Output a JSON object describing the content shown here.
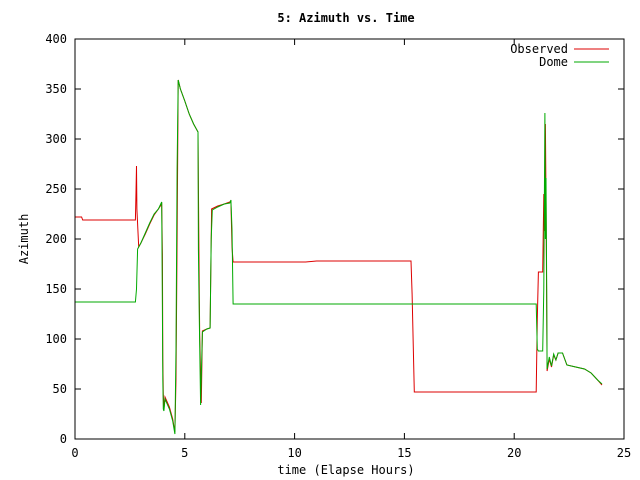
{
  "chart_data": {
    "type": "line",
    "title": "5: Azimuth vs. Time",
    "xlabel": "time (Elapse Hours)",
    "ylabel": "Azimuth",
    "xlim": [
      0,
      25
    ],
    "ylim": [
      0,
      400
    ],
    "xticks": [
      0,
      5,
      10,
      15,
      20,
      25
    ],
    "yticks": [
      0,
      50,
      100,
      150,
      200,
      250,
      300,
      350,
      400
    ],
    "xtick_labels": [
      "0",
      "5",
      "10",
      "15",
      "20",
      "25"
    ],
    "ytick_labels": [
      "0",
      "50",
      "100",
      "150",
      "200",
      "250",
      "300",
      "350",
      "400"
    ],
    "grid": false,
    "legend_position": "top-right",
    "series": [
      {
        "name": "Observed",
        "color": "#dd0000",
        "points": [
          [
            0,
            222
          ],
          [
            0.3,
            222
          ],
          [
            0.35,
            219
          ],
          [
            2.75,
            219
          ],
          [
            2.78,
            247
          ],
          [
            2.8,
            273
          ],
          [
            2.82,
            230
          ],
          [
            2.9,
            192
          ],
          [
            3.0,
            196
          ],
          [
            3.2,
            205
          ],
          [
            3.4,
            215
          ],
          [
            3.6,
            224
          ],
          [
            3.8,
            230
          ],
          [
            3.95,
            235
          ],
          [
            3.98,
            185
          ],
          [
            4.0,
            80
          ],
          [
            4.02,
            45
          ],
          [
            4.05,
            30
          ],
          [
            4.1,
            42
          ],
          [
            4.3,
            32
          ],
          [
            4.45,
            20
          ],
          [
            4.55,
            7
          ],
          [
            4.6,
            60
          ],
          [
            4.65,
            200
          ],
          [
            4.7,
            359
          ],
          [
            4.8,
            350
          ],
          [
            5.0,
            338
          ],
          [
            5.2,
            325
          ],
          [
            5.4,
            315
          ],
          [
            5.6,
            307
          ],
          [
            5.62,
            255
          ],
          [
            5.64,
            190
          ],
          [
            5.68,
            103
          ],
          [
            5.75,
            36
          ],
          [
            5.8,
            108
          ],
          [
            6.0,
            110
          ],
          [
            6.15,
            111
          ],
          [
            6.18,
            160
          ],
          [
            6.22,
            230
          ],
          [
            6.5,
            233
          ],
          [
            6.8,
            235
          ],
          [
            7.05,
            237
          ],
          [
            7.1,
            238
          ],
          [
            7.15,
            192
          ],
          [
            7.2,
            177
          ],
          [
            10.5,
            177
          ],
          [
            11.0,
            178
          ],
          [
            15.3,
            178
          ],
          [
            15.35,
            145
          ],
          [
            15.45,
            47
          ],
          [
            21.0,
            47
          ],
          [
            21.05,
            120
          ],
          [
            21.1,
            167
          ],
          [
            21.3,
            167
          ],
          [
            21.35,
            245
          ],
          [
            21.38,
            208
          ],
          [
            21.42,
            315
          ],
          [
            21.45,
            240
          ],
          [
            21.5,
            68
          ],
          [
            21.6,
            80
          ],
          [
            21.7,
            72
          ],
          [
            21.8,
            84
          ],
          [
            21.9,
            79
          ],
          [
            22.0,
            86
          ],
          [
            22.2,
            86
          ],
          [
            22.3,
            80
          ],
          [
            22.4,
            74
          ],
          [
            22.8,
            72
          ],
          [
            23.2,
            70
          ],
          [
            23.5,
            66
          ],
          [
            23.8,
            59
          ],
          [
            24.0,
            54
          ]
        ]
      },
      {
        "name": "Dome",
        "color": "#00aa00",
        "points": [
          [
            0,
            137
          ],
          [
            2.75,
            137
          ],
          [
            2.8,
            150
          ],
          [
            2.85,
            190
          ],
          [
            3.0,
            196
          ],
          [
            3.2,
            206
          ],
          [
            3.4,
            216
          ],
          [
            3.6,
            225
          ],
          [
            3.8,
            230
          ],
          [
            3.95,
            237
          ],
          [
            3.98,
            130
          ],
          [
            4.0,
            60
          ],
          [
            4.02,
            30
          ],
          [
            4.05,
            28
          ],
          [
            4.1,
            40
          ],
          [
            4.3,
            30
          ],
          [
            4.45,
            18
          ],
          [
            4.55,
            5
          ],
          [
            4.6,
            90
          ],
          [
            4.65,
            270
          ],
          [
            4.7,
            359
          ],
          [
            4.8,
            350
          ],
          [
            5.0,
            338
          ],
          [
            5.2,
            325
          ],
          [
            5.4,
            315
          ],
          [
            5.6,
            307
          ],
          [
            5.62,
            190
          ],
          [
            5.66,
            120
          ],
          [
            5.72,
            34
          ],
          [
            5.8,
            107
          ],
          [
            6.0,
            110
          ],
          [
            6.15,
            111
          ],
          [
            6.2,
            200
          ],
          [
            6.25,
            229
          ],
          [
            6.5,
            232
          ],
          [
            6.8,
            235
          ],
          [
            7.05,
            236
          ],
          [
            7.1,
            239
          ],
          [
            7.15,
            210
          ],
          [
            7.2,
            135
          ],
          [
            21.0,
            135
          ],
          [
            21.05,
            90
          ],
          [
            21.1,
            88
          ],
          [
            21.3,
            88
          ],
          [
            21.35,
            150
          ],
          [
            21.4,
            326
          ],
          [
            21.42,
            200
          ],
          [
            21.45,
            261
          ],
          [
            21.48,
            150
          ],
          [
            21.5,
            70
          ],
          [
            21.6,
            82
          ],
          [
            21.7,
            73
          ],
          [
            21.8,
            85
          ],
          [
            21.9,
            79
          ],
          [
            22.0,
            86
          ],
          [
            22.2,
            86
          ],
          [
            22.3,
            80
          ],
          [
            22.4,
            74
          ],
          [
            22.8,
            72
          ],
          [
            23.2,
            70
          ],
          [
            23.5,
            66
          ],
          [
            23.8,
            59
          ],
          [
            24.0,
            55
          ]
        ]
      }
    ]
  }
}
